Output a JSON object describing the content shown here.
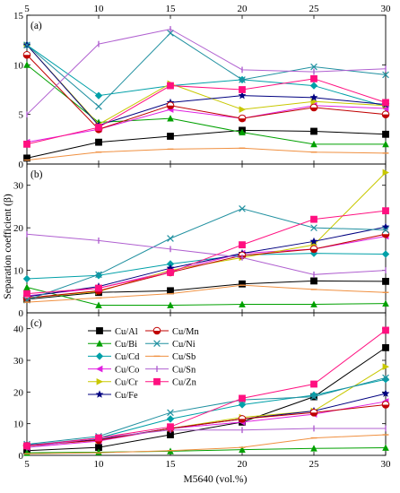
{
  "chart_data": {
    "type": "line",
    "xlabel": "M5640 (vol.%)",
    "ylabel": "Separation coefficient (β)",
    "x": [
      5,
      10,
      15,
      20,
      25,
      30
    ],
    "x_ticks": [
      "5",
      "10",
      "15",
      "20",
      "25",
      "30"
    ],
    "legend_placement": "inside panel (c), top-left, two columns",
    "panels": [
      {
        "label": "(a)",
        "ylim": [
          0,
          15
        ],
        "y_ticks": [
          0,
          5,
          10,
          15
        ],
        "series": [
          {
            "name": "Cu/Al",
            "values": [
              0.6,
              2.2,
              2.8,
              3.4,
              3.3,
              3.0
            ]
          },
          {
            "name": "Cu/Bi",
            "values": [
              10.0,
              4.2,
              4.6,
              3.2,
              2.0,
              2.0
            ]
          },
          {
            "name": "Cu/Cd",
            "values": [
              12.0,
              6.9,
              7.9,
              8.5,
              7.9,
              5.8
            ]
          },
          {
            "name": "Cu/Co",
            "values": [
              2.2,
              3.5,
              5.5,
              4.6,
              5.9,
              5.6
            ]
          },
          {
            "name": "Cu/Cr",
            "values": [
              12.0,
              4.0,
              8.1,
              5.5,
              6.3,
              5.9
            ]
          },
          {
            "name": "Cu/Fe",
            "values": [
              12.0,
              3.9,
              6.2,
              6.9,
              6.7,
              6.0
            ]
          },
          {
            "name": "Cu/Mn",
            "values": [
              11.0,
              3.5,
              5.9,
              4.6,
              5.7,
              5.0
            ]
          },
          {
            "name": "Cu/Ni",
            "values": [
              12.0,
              5.8,
              13.2,
              8.5,
              9.8,
              9.0
            ]
          },
          {
            "name": "Cu/Sb",
            "values": [
              0.4,
              1.2,
              1.5,
              1.6,
              1.2,
              1.1
            ]
          },
          {
            "name": "Cu/Sn",
            "values": [
              5.0,
              12.1,
              13.6,
              9.5,
              9.3,
              9.6
            ]
          },
          {
            "name": "Cu/Zn",
            "values": [
              2.0,
              3.7,
              7.9,
              7.5,
              8.6,
              6.2
            ]
          }
        ]
      },
      {
        "label": "(b)",
        "ylim": [
          0,
          35
        ],
        "y_ticks": [
          0,
          10,
          20,
          30
        ],
        "series": [
          {
            "name": "Cu/Al",
            "values": [
              3.2,
              4.8,
              5.2,
              6.8,
              7.5,
              7.4
            ]
          },
          {
            "name": "Cu/Bi",
            "values": [
              6.0,
              1.8,
              1.8,
              2.0,
              2.0,
              2.2
            ]
          },
          {
            "name": "Cu/Cd",
            "values": [
              8.0,
              8.8,
              11.5,
              13.6,
              14.0,
              13.8
            ]
          },
          {
            "name": "Cu/Co",
            "values": [
              4.0,
              5.8,
              9.8,
              14.0,
              15.0,
              18.0
            ]
          },
          {
            "name": "Cu/Cr",
            "values": [
              3.5,
              5.0,
              10.0,
              13.0,
              16.0,
              33.0
            ]
          },
          {
            "name": "Cu/Fe",
            "values": [
              3.8,
              6.2,
              10.5,
              14.0,
              16.8,
              20.2
            ]
          },
          {
            "name": "Cu/Mn",
            "values": [
              3.5,
              5.2,
              9.5,
              13.5,
              15.0,
              18.5
            ]
          },
          {
            "name": "Cu/Ni",
            "values": [
              3.0,
              9.0,
              17.5,
              24.5,
              20.0,
              19.5
            ]
          },
          {
            "name": "Cu/Sb",
            "values": [
              2.5,
              3.5,
              4.5,
              6.5,
              5.5,
              4.8
            ]
          },
          {
            "name": "Cu/Sn",
            "values": [
              18.5,
              17.0,
              15.0,
              13.0,
              9.0,
              10.0
            ]
          },
          {
            "name": "Cu/Zn",
            "values": [
              4.5,
              5.8,
              9.5,
              16.0,
              22.0,
              24.0
            ]
          }
        ]
      },
      {
        "label": "(c)",
        "ylim": [
          0,
          45
        ],
        "y_ticks": [
          0,
          10,
          20,
          30,
          40
        ],
        "series": [
          {
            "name": "Cu/Al",
            "values": [
              1.5,
              2.5,
              6.5,
              10.5,
              18.5,
              34.0
            ]
          },
          {
            "name": "Cu/Bi",
            "values": [
              0.8,
              1.0,
              1.3,
              1.8,
              2.2,
              2.4
            ]
          },
          {
            "name": "Cu/Cd",
            "values": [
              3.2,
              5.5,
              11.5,
              16.0,
              19.0,
              24.0
            ]
          },
          {
            "name": "Cu/Co",
            "values": [
              2.5,
              4.5,
              8.5,
              10.5,
              13.0,
              17.0
            ]
          },
          {
            "name": "Cu/Cr",
            "values": [
              3.0,
              4.8,
              8.5,
              12.0,
              14.0,
              28.0
            ]
          },
          {
            "name": "Cu/Fe",
            "values": [
              3.2,
              5.0,
              8.5,
              11.5,
              14.0,
              19.5
            ]
          },
          {
            "name": "Cu/Mn",
            "values": [
              3.0,
              4.8,
              8.5,
              11.5,
              13.5,
              16.0
            ]
          },
          {
            "name": "Cu/Ni",
            "values": [
              3.5,
              6.0,
              13.5,
              17.5,
              18.5,
              24.5
            ]
          },
          {
            "name": "Cu/Sb",
            "values": [
              0.5,
              0.8,
              1.5,
              2.5,
              5.5,
              6.5
            ]
          },
          {
            "name": "Cu/Sn",
            "values": [
              2.5,
              5.5,
              8.0,
              8.0,
              8.5,
              8.5
            ]
          },
          {
            "name": "Cu/Zn",
            "values": [
              3.0,
              5.5,
              9.0,
              18.0,
              22.5,
              39.5
            ]
          }
        ]
      }
    ],
    "legend": [
      {
        "name": "Cu/Al",
        "color": "#000000",
        "marker": "square"
      },
      {
        "name": "Cu/Mn",
        "color": "#c00000",
        "marker": "half-circle"
      },
      {
        "name": "Cu/Bi",
        "color": "#00a000",
        "marker": "triangle-up"
      },
      {
        "name": "Cu/Ni",
        "color": "#2090a0",
        "marker": "x"
      },
      {
        "name": "Cu/Cd",
        "color": "#00a0a8",
        "marker": "diamond"
      },
      {
        "name": "Cu/Sb",
        "color": "#f09040",
        "marker": "minus"
      },
      {
        "name": "Cu/Co",
        "color": "#e020e0",
        "marker": "triangle-left"
      },
      {
        "name": "Cu/Sn",
        "color": "#b060d0",
        "marker": "bar"
      },
      {
        "name": "Cu/Cr",
        "color": "#c8c800",
        "marker": "triangle-right"
      },
      {
        "name": "Cu/Zn",
        "color": "#ff1080",
        "marker": "square"
      },
      {
        "name": "Cu/Fe",
        "color": "#000080",
        "marker": "star"
      }
    ]
  }
}
